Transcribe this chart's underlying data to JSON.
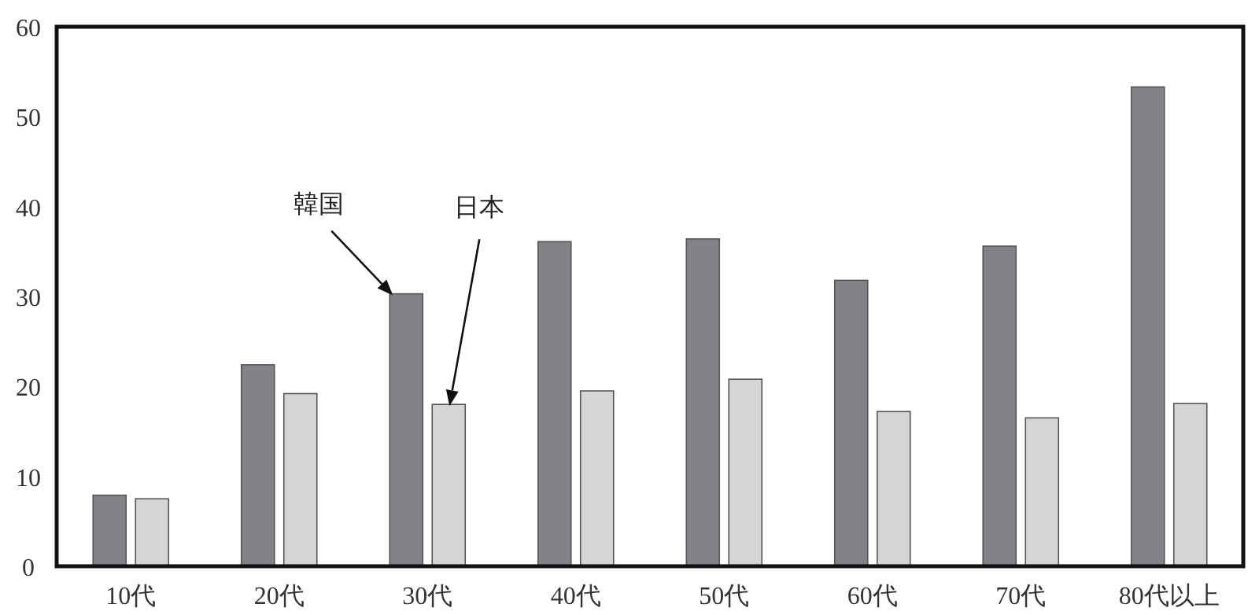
{
  "chart_data": {
    "type": "bar",
    "categories": [
      "10代",
      "20代",
      "30代",
      "40代",
      "50代",
      "60代",
      "70代",
      "80代以上"
    ],
    "series": [
      {
        "color": "#828287",
        "values": [
          7.9,
          22.4,
          30.3,
          36.1,
          36.4,
          31.8,
          35.6,
          53.3
        ]
      },
      {
        "color": "#d5d5d7",
        "values": [
          7.5,
          19.2,
          18.0,
          19.5,
          20.8,
          17.2,
          16.5,
          18.1
        ]
      }
    ],
    "ylim": [
      0,
      60
    ],
    "yticks": [
      0,
      10,
      20,
      30,
      40,
      50,
      60
    ],
    "annotations": [
      "韓国",
      "日本"
    ]
  }
}
